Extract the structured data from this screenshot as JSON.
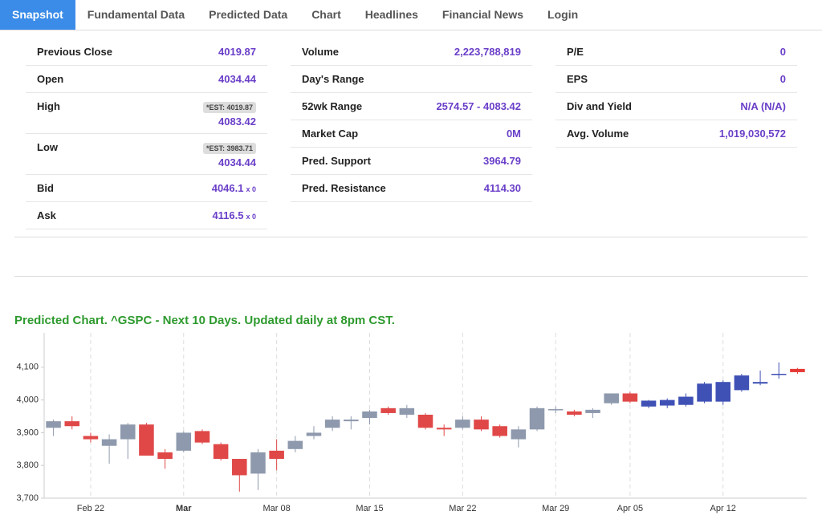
{
  "tabs": [
    "Snapshot",
    "Fundamental Data",
    "Predicted Data",
    "Chart",
    "Headlines",
    "Financial News",
    "Login"
  ],
  "stats": [
    [
      {
        "label": "Previous Close",
        "value": "4019.87"
      },
      {
        "label": "Open",
        "value": "4034.44"
      },
      {
        "label": "High",
        "est": "*EST: 4019.87",
        "value": "4083.42"
      },
      {
        "label": "Low",
        "est": "*EST: 3983.71",
        "value": "4034.44"
      },
      {
        "label": "Bid",
        "value": "4046.1",
        "size": "x 0"
      },
      {
        "label": "Ask",
        "value": "4116.5",
        "size": "x 0"
      }
    ],
    [
      {
        "label": "Volume",
        "value": "2,223,788,819"
      },
      {
        "label": "Day's Range"
      },
      {
        "label": "52wk Range",
        "value": "2574.57 - 4083.42"
      },
      {
        "label": "Market Cap",
        "value": "0M"
      },
      {
        "label": "Pred. Support",
        "value": "3964.79"
      },
      {
        "label": "Pred. Resistance",
        "value": "4114.30"
      }
    ],
    [
      {
        "label": "P/E",
        "value": "0"
      },
      {
        "label": "EPS",
        "value": "0"
      },
      {
        "label": "Div and Yield",
        "value": "N/A (N/A)"
      },
      {
        "label": "Avg. Volume",
        "value": "1,019,030,572"
      }
    ]
  ],
  "chart_data": {
    "type": "candlestick",
    "title": "Predicted Chart. ^GSPC - Next 10 Days. Updated daily at 8pm CST.",
    "categories": [
      null,
      null,
      "Feb 22",
      null,
      null,
      null,
      null,
      "Mar",
      null,
      null,
      null,
      null,
      "Mar 08",
      null,
      null,
      null,
      null,
      "Mar 15",
      null,
      null,
      null,
      null,
      "Mar 22",
      null,
      null,
      null,
      null,
      "Mar 29",
      null,
      null,
      null,
      "Apr 05",
      null,
      null,
      null,
      null,
      "Apr 12",
      null,
      null,
      null,
      null
    ],
    "ylim": [
      3700,
      4205
    ],
    "yticks": [
      {
        "value": 3700,
        "label": "3,700"
      },
      {
        "value": 3800,
        "label": "3,800"
      },
      {
        "value": 3900,
        "label": "3,900"
      },
      {
        "value": 4000,
        "label": "4,000"
      },
      {
        "value": 4100,
        "label": "4,100"
      }
    ],
    "grid": true,
    "series": [
      {
        "up_color": "#8e99ad",
        "down_color": "#e04848",
        "open": [
          3915,
          3935,
          3890,
          3860,
          3880,
          3925,
          3840,
          3845,
          3905,
          3865,
          3820,
          3775,
          3845,
          3850,
          3890,
          3915,
          3935,
          3945,
          3975,
          3955,
          3955,
          3915,
          3915,
          3940,
          3920,
          3880,
          3910,
          3970,
          3965,
          3960,
          3990,
          4020,
          null,
          null,
          null,
          null,
          null,
          null,
          null,
          null,
          null
        ],
        "high": [
          3940,
          3950,
          3900,
          3895,
          3930,
          3930,
          3850,
          3905,
          3910,
          3870,
          3820,
          3850,
          3880,
          3890,
          3920,
          3950,
          3950,
          3970,
          3980,
          3985,
          3960,
          3925,
          3950,
          3950,
          3925,
          3920,
          3980,
          3980,
          3970,
          3975,
          4020,
          4025,
          null,
          null,
          null,
          null,
          null,
          null,
          null,
          null,
          null
        ],
        "low": [
          3890,
          3910,
          3870,
          3805,
          3820,
          3830,
          3790,
          3840,
          3865,
          3815,
          3720,
          3725,
          3785,
          3840,
          3880,
          3905,
          3910,
          3925,
          3955,
          3945,
          3910,
          3890,
          3910,
          3905,
          3885,
          3855,
          3905,
          3960,
          3950,
          3945,
          3985,
          3990,
          null,
          null,
          null,
          null,
          null,
          null,
          null,
          null,
          null
        ],
        "close": [
          3935,
          3920,
          3880,
          3880,
          3925,
          3830,
          3820,
          3900,
          3870,
          3820,
          3770,
          3840,
          3820,
          3875,
          3900,
          3940,
          3940,
          3965,
          3960,
          3975,
          3915,
          3910,
          3940,
          3910,
          3890,
          3910,
          3975,
          3972,
          3955,
          3970,
          4020,
          3995,
          null,
          null,
          null,
          null,
          null,
          null,
          null,
          null,
          null
        ]
      },
      {
        "up_color": "#3f51b5",
        "down_color": "#e53935",
        "open": [
          null,
          null,
          null,
          null,
          null,
          null,
          null,
          null,
          null,
          null,
          null,
          null,
          null,
          null,
          null,
          null,
          null,
          null,
          null,
          null,
          null,
          null,
          null,
          null,
          null,
          null,
          null,
          null,
          null,
          null,
          null,
          null,
          3980,
          3983,
          3985,
          3995,
          3995,
          4030,
          4050,
          4080,
          4095
        ],
        "high": [
          null,
          null,
          null,
          null,
          null,
          null,
          null,
          null,
          null,
          null,
          null,
          null,
          null,
          null,
          null,
          null,
          null,
          null,
          null,
          null,
          null,
          null,
          null,
          null,
          null,
          null,
          null,
          null,
          null,
          null,
          null,
          null,
          4000,
          4005,
          4020,
          4055,
          4060,
          4080,
          4090,
          4115,
          4098
        ],
        "low": [
          null,
          null,
          null,
          null,
          null,
          null,
          null,
          null,
          null,
          null,
          null,
          null,
          null,
          null,
          null,
          null,
          null,
          null,
          null,
          null,
          null,
          null,
          null,
          null,
          null,
          null,
          null,
          null,
          null,
          null,
          null,
          null,
          3975,
          3975,
          3980,
          3990,
          3985,
          4025,
          4045,
          4065,
          4080
        ],
        "close": [
          null,
          null,
          null,
          null,
          null,
          null,
          null,
          null,
          null,
          null,
          null,
          null,
          null,
          null,
          null,
          null,
          null,
          null,
          null,
          null,
          null,
          null,
          null,
          null,
          null,
          null,
          null,
          null,
          null,
          null,
          null,
          null,
          3998,
          4000,
          4010,
          4050,
          4055,
          4075,
          4055,
          4080,
          4085
        ]
      }
    ]
  }
}
